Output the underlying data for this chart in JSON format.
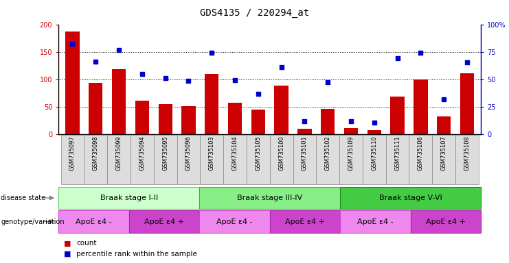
{
  "title": "GDS4135 / 220294_at",
  "samples": [
    "GSM735097",
    "GSM735098",
    "GSM735099",
    "GSM735094",
    "GSM735095",
    "GSM735096",
    "GSM735103",
    "GSM735104",
    "GSM735105",
    "GSM735100",
    "GSM735101",
    "GSM735102",
    "GSM735109",
    "GSM735110",
    "GSM735111",
    "GSM735106",
    "GSM735107",
    "GSM735108"
  ],
  "counts": [
    188,
    94,
    119,
    61,
    55,
    51,
    110,
    58,
    45,
    89,
    10,
    46,
    11,
    7,
    69,
    100,
    32,
    112
  ],
  "percentiles": [
    165,
    133,
    154,
    110,
    103,
    98,
    149,
    99,
    74,
    123,
    24,
    95,
    24,
    21,
    139,
    149,
    64,
    132
  ],
  "bar_color": "#cc0000",
  "dot_color": "#0000cc",
  "ylim_left": [
    0,
    200
  ],
  "ylim_right": [
    0,
    200
  ],
  "yticks_left": [
    0,
    50,
    100,
    150,
    200
  ],
  "yticks_right": [
    0,
    50,
    100,
    150,
    200
  ],
  "ytick_labels_left": [
    "0",
    "50",
    "100",
    "150",
    "200"
  ],
  "ytick_labels_right": [
    "0",
    "25",
    "50",
    "75",
    "100%"
  ],
  "disease_state_groups": [
    {
      "label": "Braak stage I-II",
      "start": 0,
      "end": 6,
      "color": "#ccffcc",
      "border": "#66cc66"
    },
    {
      "label": "Braak stage III-IV",
      "start": 6,
      "end": 12,
      "color": "#88ee88",
      "border": "#44aa44"
    },
    {
      "label": "Braak stage V-VI",
      "start": 12,
      "end": 18,
      "color": "#44cc44",
      "border": "#228822"
    }
  ],
  "genotype_groups": [
    {
      "label": "ApoE ε4 -",
      "start": 0,
      "end": 3,
      "color": "#ee88ee",
      "border": "#cc44cc"
    },
    {
      "label": "ApoE ε4 +",
      "start": 3,
      "end": 6,
      "color": "#cc44cc",
      "border": "#aa22aa"
    },
    {
      "label": "ApoE ε4 -",
      "start": 6,
      "end": 9,
      "color": "#ee88ee",
      "border": "#cc44cc"
    },
    {
      "label": "ApoE ε4 +",
      "start": 9,
      "end": 12,
      "color": "#cc44cc",
      "border": "#aa22aa"
    },
    {
      "label": "ApoE ε4 -",
      "start": 12,
      "end": 15,
      "color": "#ee88ee",
      "border": "#cc44cc"
    },
    {
      "label": "ApoE ε4 +",
      "start": 15,
      "end": 18,
      "color": "#cc44cc",
      "border": "#aa22aa"
    }
  ],
  "legend_count_color": "#cc0000",
  "legend_dot_color": "#0000cc",
  "background_color": "#ffffff",
  "title_fontsize": 10,
  "tick_fontsize": 7,
  "sample_fontsize": 6,
  "annot_fontsize": 8
}
